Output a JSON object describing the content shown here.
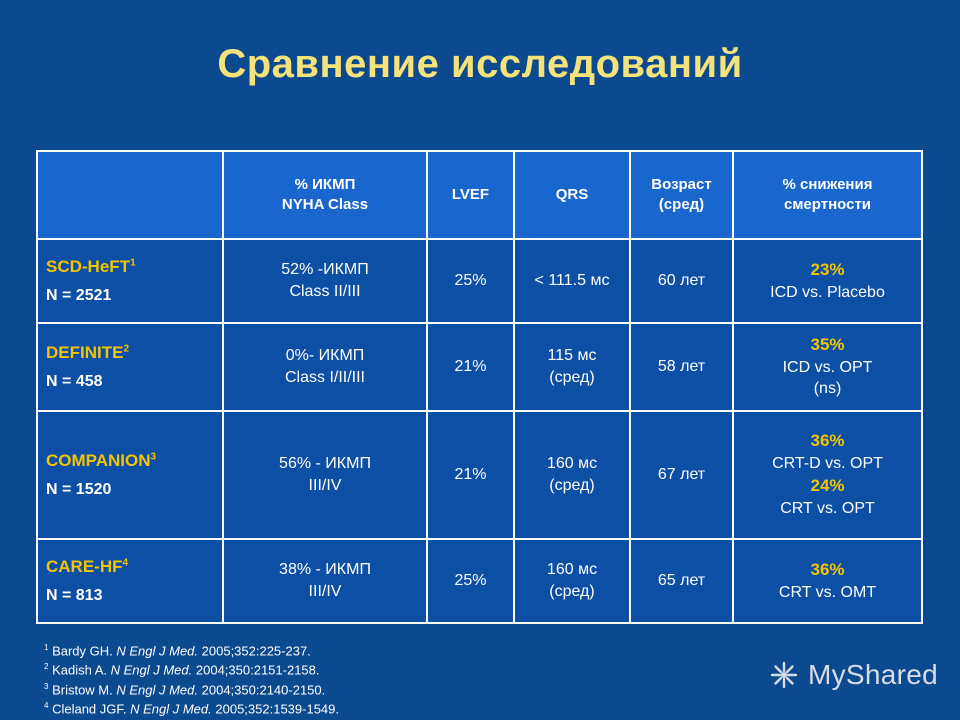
{
  "title": "Сравнение исследований",
  "headers": [
    "",
    "% ИКМП\nNYHA Class",
    "LVEF",
    "QRS",
    "Возраст\n(сред)",
    "% снижения\nсмертности"
  ],
  "rows": [
    {
      "study": "SCD-HeFT",
      "sup": "1",
      "n": "N = 2521",
      "icmp": "52% -ИКМП\nClass II/III",
      "lvef": "25%",
      "qrs": "< 111.5 мс",
      "age": "60 лет",
      "results": [
        {
          "pct": "23%",
          "text": "ICD vs. Placebo"
        }
      ]
    },
    {
      "study": "DEFINITE",
      "sup": "2",
      "n": "N = 458",
      "icmp": "0%- ИКМП\nClass I/II/III",
      "lvef": "21%",
      "qrs": "115 мс\n(сред)",
      "age": "58 лет",
      "results": [
        {
          "pct": "35%",
          "text": "ICD vs. OPT\n(ns)"
        }
      ]
    },
    {
      "study": "COMPANION",
      "sup": "3",
      "n": "N = 1520",
      "icmp": "56% - ИКМП\nIII/IV",
      "lvef": "21%",
      "qrs": "160 мс\n(сред)",
      "age": "67 лет",
      "results": [
        {
          "pct": "36%",
          "text": "CRT-D vs. OPT"
        },
        {
          "pct": "24%",
          "text": "CRT vs. OPT"
        }
      ]
    },
    {
      "study": "CARE-HF",
      "sup": "4",
      "n": "N = 813",
      "icmp": "38% - ИКМП\nIII/IV",
      "lvef": "25%",
      "qrs": "160 мс\n(сред)",
      "age": "65 лет",
      "results": [
        {
          "pct": "36%",
          "text": "CRT vs. OMT"
        }
      ]
    }
  ],
  "references": [
    {
      "num": "1",
      "author": "Bardy GH. ",
      "journal": "N Engl J Med.",
      "cite": " 2005;352:225-237."
    },
    {
      "num": "2",
      "author": "Kadish A. ",
      "journal": "N Engl J Med.",
      "cite": " 2004;350:2151-2158."
    },
    {
      "num": "3",
      "author": "Bristow M. ",
      "journal": "N Engl J Med.",
      "cite": " 2004;350:2140-2150."
    },
    {
      "num": "4",
      "author": "Cleland JGF. ",
      "journal": "N Engl J Med.",
      "cite": " 2005;352:1539-1549."
    }
  ],
  "logo": {
    "text": "MyShared"
  },
  "colors": {
    "background": "#0b4a8f",
    "header": "#1a66cf",
    "cell": "#0d4fa5",
    "title": "#f5e27a",
    "accent": "#f5c400"
  }
}
